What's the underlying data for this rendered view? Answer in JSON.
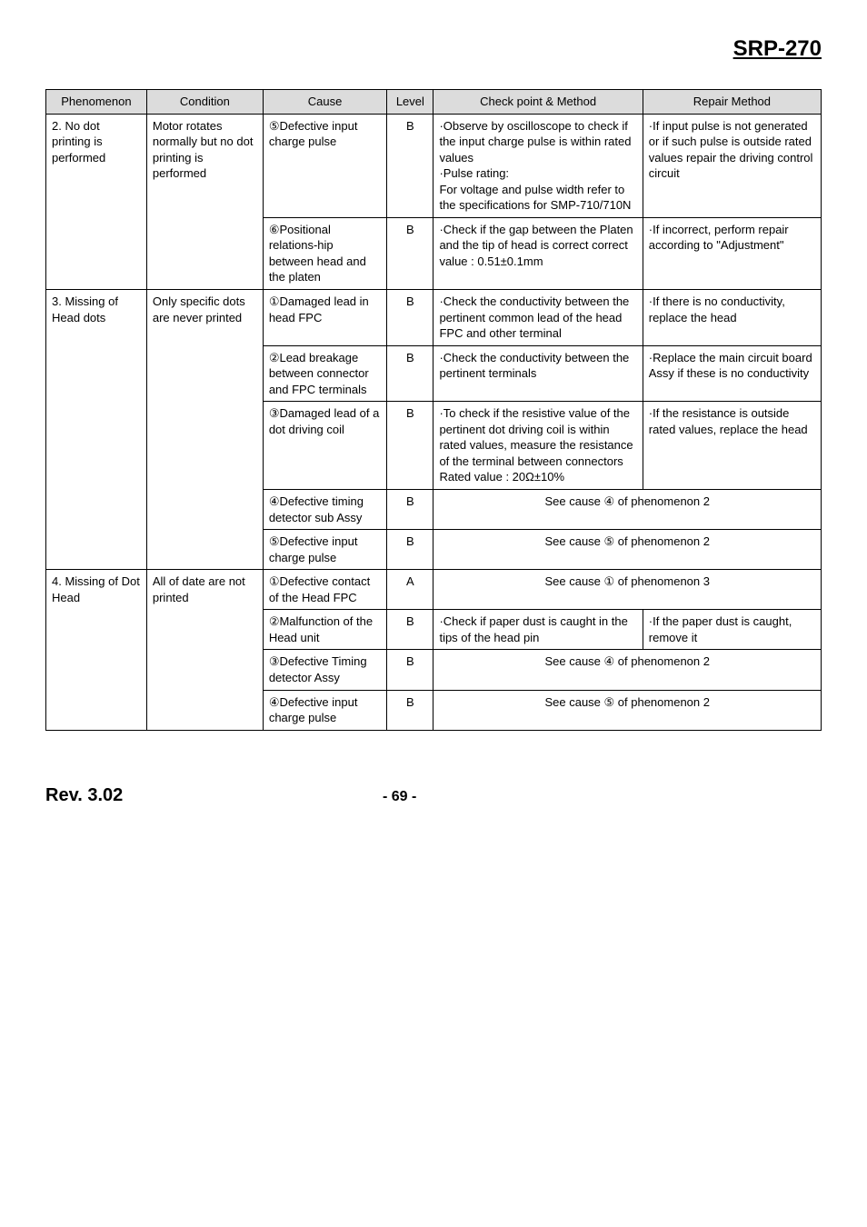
{
  "header": {
    "title": "SRP-270"
  },
  "footer": {
    "rev": "Rev. 3.02",
    "page": "- 69 -"
  },
  "columns": [
    "Phenomenon",
    "Condition",
    "Cause",
    "Level",
    "Check point & Method",
    "Repair Method"
  ],
  "circled": {
    "1": "①",
    "2": "②",
    "3": "③",
    "4": "④",
    "5": "⑤",
    "6": "⑥"
  },
  "rows": {
    "r1": {
      "phenomenon": "2. No dot printing is performed",
      "condition": "Motor rotates normally but no dot printing is performed",
      "cause": "⑤Defective input charge pulse",
      "level": "B",
      "check": "·Observe by oscilloscope to check if the input charge pulse is within rated values\n·Pulse rating:\n For voltage and pulse width refer to the specifications for SMP-710/710N",
      "repair": "·If input pulse is not generated or if such pulse is outside rated values repair the driving control circuit"
    },
    "r2": {
      "cause": "⑥Positional relations-hip between head and the platen",
      "level": "B",
      "check": "·Check if the gap between the Platen and the tip of head is correct correct value : 0.51±0.1mm",
      "repair": "·If incorrect, perform repair according to \"Adjustment\""
    },
    "r3": {
      "phenomenon": "3. Missing of Head dots",
      "condition": "Only specific dots are never printed",
      "cause": "①Damaged lead in head FPC",
      "level": "B",
      "check": "·Check the conductivity between the pertinent common lead of the head FPC and other terminal",
      "repair": "·If there is no conductivity, replace the head"
    },
    "r4": {
      "cause": "②Lead breakage between connector and FPC terminals",
      "level": "B",
      "check": "·Check the conductivity between the pertinent terminals",
      "repair": "·Replace the main circuit board Assy if these is no conductivity"
    },
    "r5": {
      "cause": "③Damaged lead of a dot driving coil",
      "level": "B",
      "check": "·To check if the resistive value of the pertinent dot driving coil is within rated values, measure the resistance of the terminal between connectors Rated value : 20Ω±10%",
      "repair": "·If the resistance is outside rated values, replace the head"
    },
    "r6": {
      "cause": "④Defective timing detector sub Assy",
      "level": "B",
      "merged": "See cause ④ of phenomenon 2"
    },
    "r7": {
      "cause": "⑤Defective input charge pulse",
      "level": "B",
      "merged": "See cause ⑤ of phenomenon 2"
    },
    "r8": {
      "phenomenon": "4. Missing of Dot Head",
      "condition": "All of date are not printed",
      "cause": "①Defective contact of the Head FPC",
      "level": "A",
      "merged": "See cause ① of phenomenon 3"
    },
    "r9": {
      "cause": "②Malfunction of the Head unit",
      "level": "B",
      "check": "·Check if paper dust is caught in the tips of the head pin",
      "repair": "·If the paper dust is caught, remove it"
    },
    "r10": {
      "cause": "③Defective Timing detector Assy",
      "level": "B",
      "merged": "See cause ④ of phenomenon 2"
    },
    "r11": {
      "cause": "④Defective input charge pulse",
      "level": "B",
      "merged": "See cause ⑤ of phenomenon 2"
    }
  }
}
